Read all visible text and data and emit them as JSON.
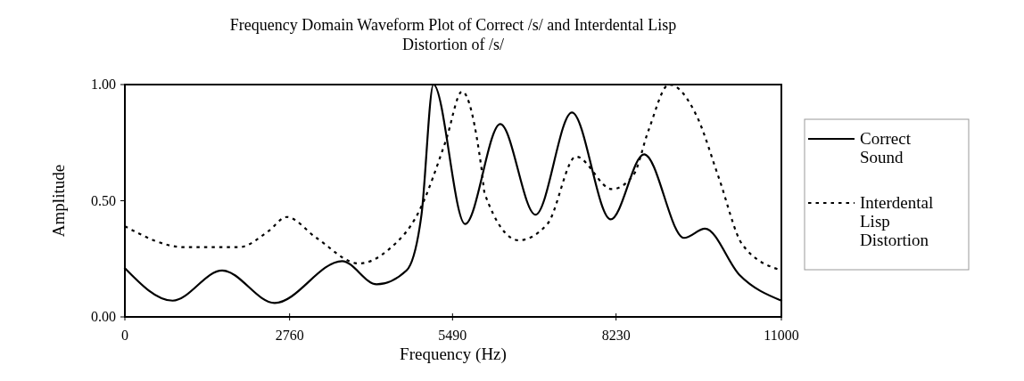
{
  "chart_data": {
    "type": "line",
    "title": "Frequency Domain Waveform Plot of Correct /s/ and Interdental Lisp Distortion of /s/",
    "xlabel": "Frequency (Hz)",
    "ylabel": "Amplitude",
    "xlim": [
      0,
      11000
    ],
    "xticks": [
      0,
      2760,
      5490,
      8230,
      11000
    ],
    "ylim": [
      0,
      1
    ],
    "yticks": [
      {
        "value": 0,
        "label": "0.00"
      },
      {
        "value": 0.5,
        "label": "0.50"
      },
      {
        "value": 1,
        "label": "1.00"
      }
    ],
    "grid": false,
    "legend": "right",
    "marker": "none",
    "series": [
      {
        "name": "Correct Sound",
        "color": "#000000",
        "line_style": "solid",
        "x": [
          0,
          800,
          1630,
          2510,
          3640,
          4220,
          4720,
          4970,
          5170,
          5700,
          6290,
          6880,
          7490,
          8140,
          8700,
          9370,
          9720,
          10300,
          11000
        ],
        "values": [
          0.21,
          0.07,
          0.2,
          0.06,
          0.24,
          0.14,
          0.2,
          0.44,
          1.0,
          0.4,
          0.83,
          0.44,
          0.88,
          0.42,
          0.7,
          0.34,
          0.38,
          0.18,
          0.07
        ]
      },
      {
        "name": "Interdental Lisp Distortion",
        "color": "#000000",
        "line_style": "dotted",
        "x": [
          0,
          1000,
          1910,
          2410,
          2710,
          3210,
          3920,
          4420,
          4920,
          5380,
          5650,
          5980,
          6030,
          6600,
          7080,
          7560,
          8160,
          8520,
          8770,
          9120,
          9590,
          9950,
          10350,
          11000
        ],
        "values": [
          0.39,
          0.3,
          0.3,
          0.37,
          0.43,
          0.34,
          0.23,
          0.29,
          0.45,
          0.76,
          0.97,
          0.63,
          0.53,
          0.33,
          0.4,
          0.69,
          0.55,
          0.61,
          0.8,
          1.0,
          0.86,
          0.6,
          0.31,
          0.2
        ]
      }
    ]
  }
}
